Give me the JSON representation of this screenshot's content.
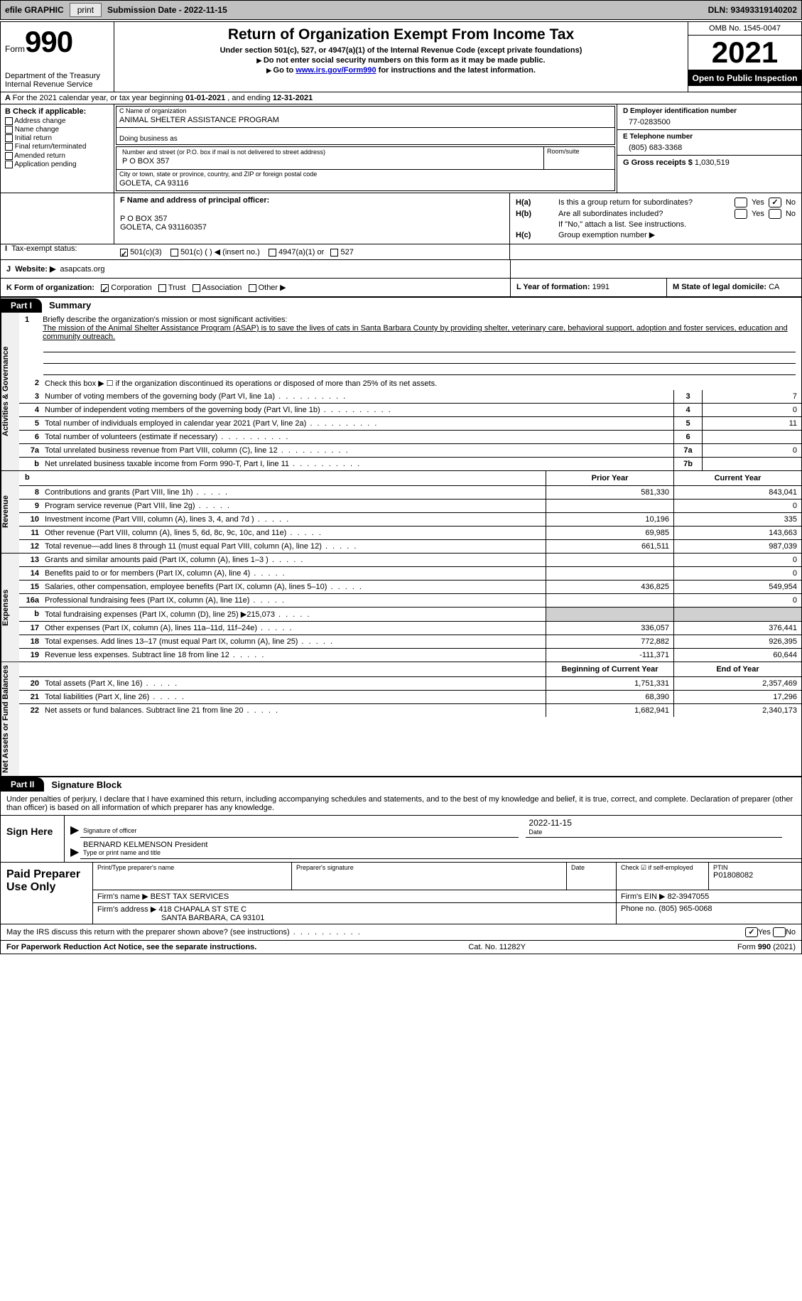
{
  "topbar": {
    "efile": "efile GRAPHIC",
    "print": "print",
    "submission_label": "Submission Date - 2022-11-15",
    "dln_label": "DLN: 93493319140202"
  },
  "header": {
    "form_word": "Form",
    "form_number": "990",
    "title": "Return of Organization Exempt From Income Tax",
    "subtitle1": "Under section 501(c), 527, or 4947(a)(1) of the Internal Revenue Code (except private foundations)",
    "subtitle2": "Do not enter social security numbers on this form as it may be made public.",
    "subtitle3_pre": "Go to ",
    "subtitle3_link": "www.irs.gov/Form990",
    "subtitle3_post": " for instructions and the latest information.",
    "dept": "Department of the Treasury",
    "irs": "Internal Revenue Service",
    "omb": "OMB No. 1545-0047",
    "year": "2021",
    "open": "Open to Public Inspection"
  },
  "row_a": {
    "text_pre": "For the 2021 calendar year, or tax year beginning ",
    "begin": "01-01-2021",
    "mid": " , and ending ",
    "end": "12-31-2021"
  },
  "box_b": {
    "title": "B Check if applicable:",
    "opts": [
      "Address change",
      "Name change",
      "Initial return",
      "Final return/terminated",
      "Amended return",
      "Application pending"
    ]
  },
  "box_c": {
    "name_label": "C Name of organization",
    "name": "ANIMAL SHELTER ASSISTANCE PROGRAM",
    "dba_label": "Doing business as",
    "street_label": "Number and street (or P.O. box if mail is not delivered to street address)",
    "street": "P O BOX 357",
    "room_label": "Room/suite",
    "city_label": "City or town, state or province, country, and ZIP or foreign postal code",
    "city": "GOLETA, CA  93116"
  },
  "box_d": {
    "label": "D Employer identification number",
    "value": "77-0283500"
  },
  "box_e": {
    "label": "E Telephone number",
    "value": "(805) 683-3368"
  },
  "box_g": {
    "label": "G Gross receipts $",
    "value": "1,030,519"
  },
  "box_f": {
    "label": "F Name and address of principal officer:",
    "line1": "P O BOX 357",
    "line2": "GOLETA, CA  931160357"
  },
  "box_h": {
    "h_a_label": "H(a)",
    "h_a_text": "Is this a group return for subordinates?",
    "h_b_label": "H(b)",
    "h_b_text": "Are all subordinates included?",
    "h_note": "If \"No,\" attach a list. See instructions.",
    "h_c_label": "H(c)",
    "h_c_text": "Group exemption number ▶",
    "yes": "Yes",
    "no": "No"
  },
  "row_i": {
    "label": "I",
    "text": "Tax-exempt status:",
    "opt1": "501(c)(3)",
    "opt2": "501(c) (  ) ◀ (insert no.)",
    "opt3": "4947(a)(1) or",
    "opt4": "527"
  },
  "row_j": {
    "label": "J",
    "text": "Website: ▶",
    "value": "asapcats.org"
  },
  "row_k": {
    "label": "K Form of organization:",
    "opts": [
      "Corporation",
      "Trust",
      "Association",
      "Other ▶"
    ],
    "l_label": "L Year of formation:",
    "l_value": "1991",
    "m_label": "M State of legal domicile:",
    "m_value": "CA"
  },
  "part1": {
    "badge": "Part I",
    "title": "Summary",
    "tab_activities": "Activities & Governance",
    "tab_revenue": "Revenue",
    "tab_expenses": "Expenses",
    "tab_netassets": "Net Assets or Fund Balances",
    "line1_label": "1",
    "line1_intro": "Briefly describe the organization's mission or most significant activities:",
    "line1_text": "The mission of the Animal Shelter Assistance Program (ASAP) is to save the lives of cats in Santa Barbara County by providing shelter, veterinary care, behavioral support, adoption and foster services, education and community outreach.",
    "line2_label": "2",
    "line2_text": "Check this box ▶ ☐ if the organization discontinued its operations or disposed of more than 25% of its net assets.",
    "lines_single": [
      {
        "n": "3",
        "desc": "Number of voting members of the governing body (Part VI, line 1a)",
        "box": "3",
        "val": "7"
      },
      {
        "n": "4",
        "desc": "Number of independent voting members of the governing body (Part VI, line 1b)",
        "box": "4",
        "val": "0"
      },
      {
        "n": "5",
        "desc": "Total number of individuals employed in calendar year 2021 (Part V, line 2a)",
        "box": "5",
        "val": "11"
      },
      {
        "n": "6",
        "desc": "Total number of volunteers (estimate if necessary)",
        "box": "6",
        "val": ""
      },
      {
        "n": "7a",
        "desc": "Total unrelated business revenue from Part VIII, column (C), line 12",
        "box": "7a",
        "val": "0"
      },
      {
        "n": "b",
        "desc": "Net unrelated business taxable income from Form 990-T, Part I, line 11",
        "box": "7b",
        "val": ""
      }
    ],
    "col_prior": "Prior Year",
    "col_current": "Current Year",
    "revenue_lines": [
      {
        "n": "8",
        "desc": "Contributions and grants (Part VIII, line 1h)",
        "v1": "581,330",
        "v2": "843,041"
      },
      {
        "n": "9",
        "desc": "Program service revenue (Part VIII, line 2g)",
        "v1": "",
        "v2": "0"
      },
      {
        "n": "10",
        "desc": "Investment income (Part VIII, column (A), lines 3, 4, and 7d )",
        "v1": "10,196",
        "v2": "335"
      },
      {
        "n": "11",
        "desc": "Other revenue (Part VIII, column (A), lines 5, 6d, 8c, 9c, 10c, and 11e)",
        "v1": "69,985",
        "v2": "143,663"
      },
      {
        "n": "12",
        "desc": "Total revenue—add lines 8 through 11 (must equal Part VIII, column (A), line 12)",
        "v1": "661,511",
        "v2": "987,039"
      }
    ],
    "expense_lines": [
      {
        "n": "13",
        "desc": "Grants and similar amounts paid (Part IX, column (A), lines 1–3 )",
        "v1": "",
        "v2": "0"
      },
      {
        "n": "14",
        "desc": "Benefits paid to or for members (Part IX, column (A), line 4)",
        "v1": "",
        "v2": "0"
      },
      {
        "n": "15",
        "desc": "Salaries, other compensation, employee benefits (Part IX, column (A), lines 5–10)",
        "v1": "436,825",
        "v2": "549,954"
      },
      {
        "n": "16a",
        "desc": "Professional fundraising fees (Part IX, column (A), line 11e)",
        "v1": "",
        "v2": "0"
      },
      {
        "n": "b",
        "desc": "Total fundraising expenses (Part IX, column (D), line 25) ▶215,073",
        "v1": "",
        "v2": "",
        "shaded": true
      },
      {
        "n": "17",
        "desc": "Other expenses (Part IX, column (A), lines 11a–11d, 11f–24e)",
        "v1": "336,057",
        "v2": "376,441"
      },
      {
        "n": "18",
        "desc": "Total expenses. Add lines 13–17 (must equal Part IX, column (A), line 25)",
        "v1": "772,882",
        "v2": "926,395"
      },
      {
        "n": "19",
        "desc": "Revenue less expenses. Subtract line 18 from line 12",
        "v1": "-111,371",
        "v2": "60,644"
      }
    ],
    "col_begin": "Beginning of Current Year",
    "col_end": "End of Year",
    "asset_lines": [
      {
        "n": "20",
        "desc": "Total assets (Part X, line 16)",
        "v1": "1,751,331",
        "v2": "2,357,469"
      },
      {
        "n": "21",
        "desc": "Total liabilities (Part X, line 26)",
        "v1": "68,390",
        "v2": "17,296"
      },
      {
        "n": "22",
        "desc": "Net assets or fund balances. Subtract line 21 from line 20",
        "v1": "1,682,941",
        "v2": "2,340,173"
      }
    ]
  },
  "part2": {
    "badge": "Part II",
    "title": "Signature Block",
    "declare": "Under penalties of perjury, I declare that I have examined this return, including accompanying schedules and statements, and to the best of my knowledge and belief, it is true, correct, and complete. Declaration of preparer (other than officer) is based on all information of which preparer has any knowledge.",
    "sign_here": "Sign Here",
    "sig_of_officer": "Signature of officer",
    "sig_date": "2022-11-15",
    "date_label": "Date",
    "officer_name": "BERNARD KELMENSON  President",
    "type_name_label": "Type or print name and title",
    "paid_prep": "Paid Preparer Use Only",
    "print_name_label": "Print/Type preparer's name",
    "prep_sig_label": "Preparer's signature",
    "prep_date_label": "Date",
    "check_if_label": "Check ☑ if self-employed",
    "ptin_label": "PTIN",
    "ptin": "P01808082",
    "firm_name_label": "Firm's name    ▶",
    "firm_name": "BEST TAX SERVICES",
    "firm_ein_label": "Firm's EIN ▶",
    "firm_ein": "82-3947055",
    "firm_addr_label": "Firm's address ▶",
    "firm_addr1": "418 CHAPALA ST STE C",
    "firm_addr2": "SANTA BARBARA, CA  93101",
    "phone_label": "Phone no.",
    "phone": "(805) 965-0068"
  },
  "footer": {
    "discuss": "May the IRS discuss this return with the preparer shown above? (see instructions)",
    "yes": "Yes",
    "no": "No",
    "pra": "For Paperwork Reduction Act Notice, see the separate instructions.",
    "cat": "Cat. No. 11282Y",
    "formref": "Form 990 (2021)"
  }
}
